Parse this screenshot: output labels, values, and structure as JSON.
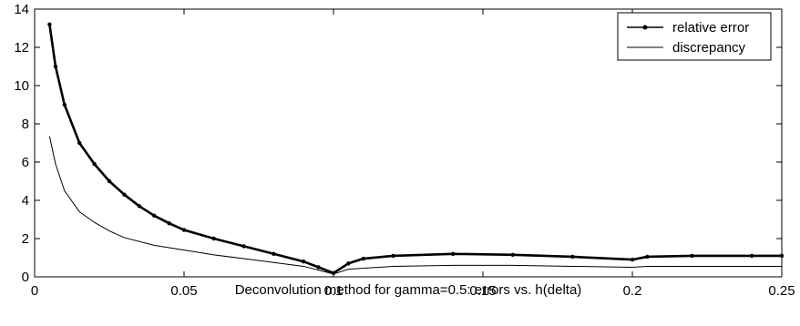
{
  "chart_data": {
    "type": "line",
    "title": "",
    "xlabel": "Deconvolution method for gamma=0.5: errors vs. h(delta)",
    "ylabel": "",
    "xlim": [
      0,
      0.25
    ],
    "ylim": [
      0,
      14
    ],
    "xticks": [
      "0",
      "0.05",
      "0.1",
      "0.15",
      "0.2",
      "0.25"
    ],
    "yticks": [
      "0",
      "2",
      "4",
      "6",
      "8",
      "10",
      "12",
      "14"
    ],
    "grid": false,
    "legend_position": "top-right",
    "series": [
      {
        "name": "relative error",
        "style": "line-with-dot-markers",
        "color": "#000000",
        "points": [
          [
            0.005,
            13.2
          ],
          [
            0.007,
            11.0
          ],
          [
            0.01,
            9.0
          ],
          [
            0.015,
            7.0
          ],
          [
            0.02,
            5.9
          ],
          [
            0.025,
            5.0
          ],
          [
            0.03,
            4.3
          ],
          [
            0.035,
            3.7
          ],
          [
            0.04,
            3.2
          ],
          [
            0.045,
            2.8
          ],
          [
            0.05,
            2.45
          ],
          [
            0.06,
            2.0
          ],
          [
            0.07,
            1.6
          ],
          [
            0.08,
            1.2
          ],
          [
            0.09,
            0.8
          ],
          [
            0.095,
            0.5
          ],
          [
            0.1,
            0.2
          ],
          [
            0.105,
            0.7
          ],
          [
            0.11,
            0.95
          ],
          [
            0.12,
            1.1
          ],
          [
            0.14,
            1.2
          ],
          [
            0.16,
            1.15
          ],
          [
            0.18,
            1.05
          ],
          [
            0.2,
            0.9
          ],
          [
            0.205,
            1.05
          ],
          [
            0.22,
            1.1
          ],
          [
            0.24,
            1.1
          ],
          [
            0.25,
            1.1
          ]
        ]
      },
      {
        "name": "discrepancy",
        "style": "line",
        "color": "#000000",
        "points": [
          [
            0.005,
            7.35
          ],
          [
            0.007,
            5.9
          ],
          [
            0.01,
            4.5
          ],
          [
            0.015,
            3.4
          ],
          [
            0.02,
            2.85
          ],
          [
            0.025,
            2.4
          ],
          [
            0.03,
            2.05
          ],
          [
            0.04,
            1.65
          ],
          [
            0.05,
            1.4
          ],
          [
            0.06,
            1.15
          ],
          [
            0.07,
            0.95
          ],
          [
            0.08,
            0.75
          ],
          [
            0.09,
            0.55
          ],
          [
            0.1,
            0.15
          ],
          [
            0.105,
            0.4
          ],
          [
            0.12,
            0.55
          ],
          [
            0.14,
            0.6
          ],
          [
            0.16,
            0.6
          ],
          [
            0.18,
            0.55
          ],
          [
            0.2,
            0.5
          ],
          [
            0.205,
            0.55
          ],
          [
            0.22,
            0.55
          ],
          [
            0.25,
            0.55
          ]
        ]
      }
    ]
  }
}
